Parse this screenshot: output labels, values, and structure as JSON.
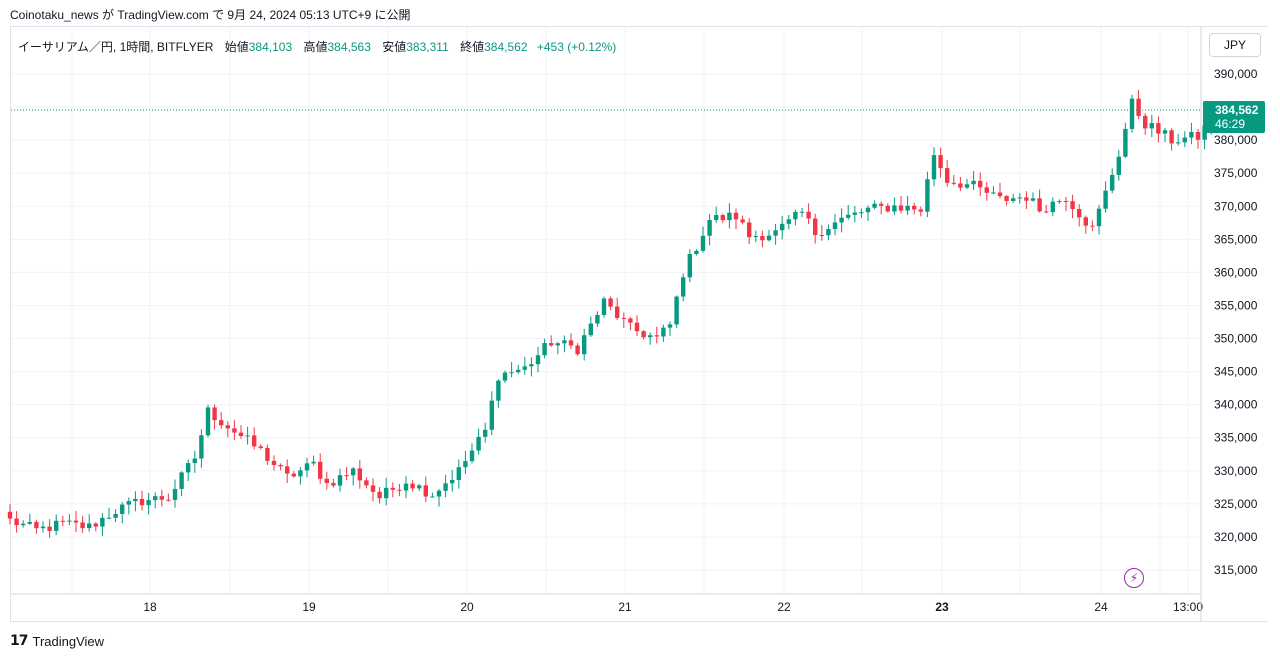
{
  "header": {
    "published_line": "Coinotaku_news が TradingView.com で 9月 24, 2024 05:13 UTC+9 に公開"
  },
  "legend": {
    "symbol": "イーサリアム／円, 1時間, BITFLYER",
    "open_label": "始値",
    "open_value": "384,103",
    "high_label": "高値",
    "high_value": "384,563",
    "low_label": "安値",
    "low_value": "383,311",
    "close_label": "終値",
    "close_value": "384,562",
    "change": "+453 (+0.12%)"
  },
  "currency_button": "JPY",
  "price_tag": {
    "price": "384,562",
    "countdown": "46:29"
  },
  "footer": {
    "logo": "17",
    "brand": "TradingView"
  },
  "colors": {
    "up": "#089981",
    "down": "#f23645",
    "grid": "#f0f3fa",
    "text": "#131722"
  },
  "chart_data": {
    "type": "candlestick",
    "interval": "1h",
    "y_axis": {
      "ticks": [
        315000,
        320000,
        325000,
        330000,
        335000,
        340000,
        345000,
        350000,
        355000,
        360000,
        365000,
        370000,
        375000,
        380000,
        385000,
        390000
      ],
      "tick_labels": [
        "315,000",
        "320,000",
        "325,000",
        "330,000",
        "335,000",
        "340,000",
        "345,000",
        "350,000",
        "355,000",
        "360,000",
        "365,000",
        "370,000",
        "375,000",
        "380,000",
        "385,000",
        "390,000"
      ],
      "ylim": [
        311000,
        393000
      ],
      "position": "right"
    },
    "x_axis": {
      "labels": [
        "18",
        "19",
        "20",
        "21",
        "22",
        "23",
        "24",
        "13:00"
      ],
      "bold_label": "23"
    },
    "last_price": 384562,
    "anchors": [
      [
        0,
        322500
      ],
      [
        4,
        321000
      ],
      [
        8,
        322000
      ],
      [
        12,
        321500
      ],
      [
        16,
        324000
      ],
      [
        20,
        325500
      ],
      [
        24,
        326000
      ],
      [
        28,
        332000
      ],
      [
        30,
        339000
      ],
      [
        34,
        336000
      ],
      [
        38,
        333000
      ],
      [
        42,
        329000
      ],
      [
        46,
        331000
      ],
      [
        48,
        328000
      ],
      [
        52,
        330000
      ],
      [
        56,
        326000
      ],
      [
        60,
        328500
      ],
      [
        64,
        326500
      ],
      [
        68,
        330000
      ],
      [
        70,
        333000
      ],
      [
        72,
        336000
      ],
      [
        74,
        344500
      ],
      [
        78,
        345500
      ],
      [
        82,
        349500
      ],
      [
        86,
        348500
      ],
      [
        88,
        352000
      ],
      [
        90,
        355500
      ],
      [
        94,
        351500
      ],
      [
        98,
        350000
      ],
      [
        100,
        352000
      ],
      [
        102,
        360000
      ],
      [
        104,
        364000
      ],
      [
        106,
        368000
      ],
      [
        110,
        368500
      ],
      [
        112,
        365500
      ],
      [
        116,
        366000
      ],
      [
        120,
        369000
      ],
      [
        122,
        366000
      ],
      [
        126,
        368000
      ],
      [
        130,
        369500
      ],
      [
        134,
        370000
      ],
      [
        138,
        369500
      ],
      [
        140,
        378000
      ],
      [
        142,
        374000
      ],
      [
        146,
        373000
      ],
      [
        150,
        371000
      ],
      [
        154,
        371500
      ],
      [
        156,
        369500
      ],
      [
        160,
        371500
      ],
      [
        162,
        369000
      ],
      [
        164,
        366500
      ],
      [
        166,
        372000
      ],
      [
        168,
        378000
      ],
      [
        170,
        385500
      ],
      [
        172,
        382500
      ],
      [
        176,
        380000
      ],
      [
        180,
        380500
      ],
      [
        182,
        383000
      ],
      [
        184,
        383500
      ],
      [
        186,
        384562
      ]
    ]
  }
}
